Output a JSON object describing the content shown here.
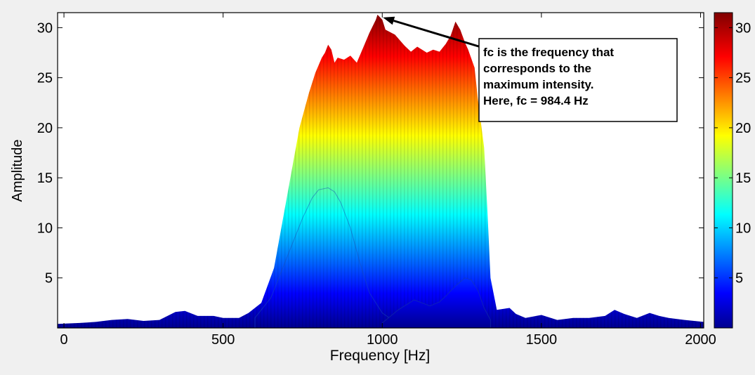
{
  "chart_data": {
    "type": "area",
    "xlabel": "Frequency [Hz]",
    "ylabel": "Amplitude",
    "xlim": [
      -20,
      2010
    ],
    "ylim": [
      0,
      31.5
    ],
    "xticks": [
      {
        "value": 0,
        "label": "0"
      },
      {
        "value": 500,
        "label": "500"
      },
      {
        "value": 1000,
        "label": "1000"
      },
      {
        "value": 1500,
        "label": "1500"
      },
      {
        "value": 2000,
        "label": "2000"
      }
    ],
    "yticks": [
      {
        "value": 5,
        "label": "5"
      },
      {
        "value": 10,
        "label": "10"
      },
      {
        "value": 15,
        "label": "15"
      },
      {
        "value": 20,
        "label": "20"
      },
      {
        "value": 25,
        "label": "25"
      },
      {
        "value": 30,
        "label": "30"
      }
    ],
    "colorbar": {
      "colormap": "jet",
      "range": [
        0,
        31.5
      ],
      "ticks": [
        {
          "value": 5,
          "label": "5"
        },
        {
          "value": 10,
          "label": "10"
        },
        {
          "value": 15,
          "label": "15"
        },
        {
          "value": 20,
          "label": "20"
        },
        {
          "value": 25,
          "label": "25"
        },
        {
          "value": 30,
          "label": "30"
        }
      ]
    },
    "envelope": {
      "x": [
        -20,
        50,
        100,
        150,
        200,
        250,
        300,
        350,
        380,
        420,
        470,
        500,
        550,
        580,
        620,
        660,
        700,
        740,
        770,
        790,
        810,
        820,
        830,
        840,
        850,
        860,
        880,
        900,
        920,
        940,
        960,
        980,
        985,
        1000,
        1010,
        1040,
        1070,
        1090,
        1110,
        1140,
        1160,
        1180,
        1200,
        1215,
        1230,
        1245,
        1260,
        1270,
        1290,
        1300,
        1320,
        1330,
        1340,
        1360,
        1400,
        1420,
        1450,
        1500,
        1550,
        1600,
        1650,
        1700,
        1730,
        1760,
        1800,
        1840,
        1870,
        1900,
        1950,
        2010
      ],
      "y": [
        0.4,
        0.5,
        0.6,
        0.8,
        0.9,
        0.7,
        0.8,
        1.6,
        1.7,
        1.2,
        1.2,
        1.0,
        1.0,
        1.5,
        2.5,
        6,
        13,
        20,
        23.5,
        25.5,
        27,
        27.5,
        28.3,
        27.8,
        26.5,
        27.0,
        26.8,
        27.2,
        26.5,
        28.0,
        29.5,
        30.8,
        31.3,
        30.8,
        29.8,
        29.3,
        28.2,
        27.6,
        28.1,
        27.5,
        27.8,
        27.6,
        28.4,
        29.2,
        30.6,
        29.8,
        28.5,
        27.8,
        26.0,
        23,
        18,
        12,
        5,
        1.8,
        2.0,
        1.4,
        1.0,
        1.3,
        0.8,
        1.0,
        1.0,
        1.2,
        1.8,
        1.4,
        1.0,
        1.5,
        1.2,
        1.0,
        0.8,
        0.6
      ]
    },
    "inner_lobe": {
      "x": [
        600,
        650,
        700,
        750,
        780,
        800,
        830,
        850,
        870,
        900,
        930,
        960,
        1000,
        1040
      ],
      "y": [
        1.0,
        3,
        7,
        11,
        13,
        13.8,
        14.0,
        13.6,
        12.5,
        10,
        6.5,
        3.5,
        1.5,
        0.6
      ]
    },
    "secondary_bumps": {
      "x": [
        1000,
        1050,
        1100,
        1150,
        1180,
        1200,
        1230,
        1260,
        1280,
        1300,
        1320,
        1340
      ],
      "y": [
        0.5,
        1.8,
        2.8,
        2.2,
        2.6,
        3.2,
        4.2,
        5.0,
        4.8,
        3.8,
        2.0,
        0.8
      ]
    },
    "annotation": {
      "lines": [
        "fc is the frequency that",
        "corresponds to the",
        "maximum intensity.",
        "Here, fc = 984.4 Hz"
      ],
      "arrow_target": {
        "x": 984.4,
        "y": 31.3
      }
    }
  }
}
